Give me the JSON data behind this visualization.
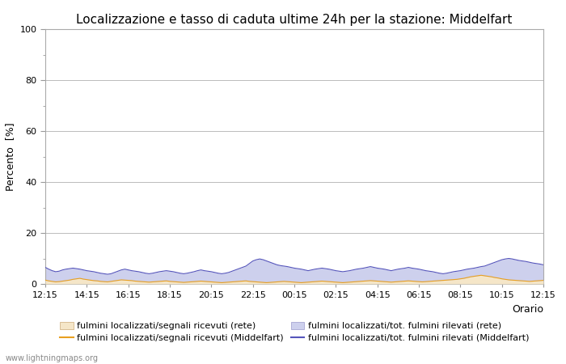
{
  "title": "Localizzazione e tasso di caduta ultime 24h per la stazione: Middelfart",
  "ylabel": "Percento  [%]",
  "xlabel": "Orario",
  "watermark": "www.lightningmaps.org",
  "ylim": [
    0,
    100
  ],
  "yticks": [
    0,
    20,
    40,
    60,
    80,
    100
  ],
  "yticks_minor": [
    10,
    30,
    50,
    70,
    90
  ],
  "x_labels": [
    "12:15",
    "14:15",
    "16:15",
    "18:15",
    "20:15",
    "22:15",
    "00:15",
    "02:15",
    "04:15",
    "06:15",
    "08:15",
    "10:15",
    "12:15"
  ],
  "fill_rete_color": "#f5e6c8",
  "fill_middelfart_color": "#cdd0ed",
  "line_rete_color": "#e8a020",
  "line_middelfart_color": "#5555bb",
  "bg_color": "#ffffff",
  "plot_bg_color": "#ffffff",
  "grid_color": "#bbbbbb",
  "title_fontsize": 11,
  "axis_fontsize": 9,
  "tick_fontsize": 8,
  "legend_fontsize": 8,
  "num_points": 145,
  "rete_fill_values": [
    1.5,
    1.2,
    1.0,
    0.8,
    0.9,
    1.1,
    1.3,
    1.5,
    1.8,
    2.0,
    2.2,
    1.9,
    1.7,
    1.5,
    1.3,
    1.2,
    1.0,
    0.9,
    0.8,
    1.0,
    1.2,
    1.4,
    1.6,
    1.5,
    1.4,
    1.3,
    1.1,
    1.0,
    0.9,
    0.8,
    0.7,
    0.8,
    0.9,
    1.0,
    1.1,
    1.2,
    1.0,
    0.9,
    0.8,
    0.7,
    0.6,
    0.7,
    0.8,
    0.9,
    1.0,
    1.1,
    1.0,
    0.9,
    0.8,
    0.7,
    0.6,
    0.5,
    0.6,
    0.7,
    0.8,
    0.9,
    1.0,
    1.1,
    1.2,
    1.0,
    0.9,
    0.8,
    0.7,
    0.6,
    0.5,
    0.6,
    0.7,
    0.8,
    0.9,
    1.0,
    0.9,
    0.8,
    0.7,
    0.6,
    0.5,
    0.6,
    0.7,
    0.8,
    0.9,
    1.0,
    1.1,
    1.0,
    0.9,
    0.8,
    0.7,
    0.6,
    0.5,
    0.6,
    0.7,
    0.8,
    0.9,
    1.0,
    1.1,
    1.2,
    1.3,
    1.2,
    1.1,
    1.0,
    0.9,
    0.8,
    0.7,
    0.8,
    0.9,
    1.0,
    1.1,
    1.2,
    1.1,
    1.0,
    0.9,
    0.8,
    0.9,
    1.0,
    1.1,
    1.2,
    1.3,
    1.4,
    1.5,
    1.6,
    1.7,
    1.8,
    2.0,
    2.2,
    2.5,
    2.8,
    3.0,
    3.2,
    3.4,
    3.2,
    3.0,
    2.8,
    2.5,
    2.3,
    2.0,
    1.8,
    1.6,
    1.5,
    1.4,
    1.3,
    1.2,
    1.1,
    1.0,
    1.1,
    1.2,
    1.3,
    1.4
  ],
  "middelfart_fill_values": [
    6.5,
    5.8,
    5.2,
    4.8,
    5.0,
    5.5,
    5.8,
    6.0,
    6.2,
    6.0,
    5.8,
    5.5,
    5.2,
    5.0,
    4.8,
    4.5,
    4.2,
    4.0,
    3.8,
    4.0,
    4.5,
    5.0,
    5.5,
    5.8,
    5.5,
    5.2,
    5.0,
    4.8,
    4.5,
    4.2,
    4.0,
    4.2,
    4.5,
    4.8,
    5.0,
    5.2,
    5.0,
    4.8,
    4.5,
    4.2,
    4.0,
    4.2,
    4.5,
    4.8,
    5.2,
    5.5,
    5.2,
    5.0,
    4.8,
    4.5,
    4.2,
    4.0,
    4.2,
    4.5,
    5.0,
    5.5,
    6.0,
    6.5,
    7.0,
    8.0,
    9.0,
    9.5,
    9.8,
    9.5,
    9.0,
    8.5,
    8.0,
    7.5,
    7.2,
    7.0,
    6.8,
    6.5,
    6.2,
    6.0,
    5.8,
    5.5,
    5.2,
    5.5,
    5.8,
    6.0,
    6.2,
    6.0,
    5.8,
    5.5,
    5.2,
    5.0,
    4.8,
    5.0,
    5.2,
    5.5,
    5.8,
    6.0,
    6.2,
    6.5,
    6.8,
    6.5,
    6.2,
    6.0,
    5.8,
    5.5,
    5.2,
    5.5,
    5.8,
    6.0,
    6.2,
    6.5,
    6.2,
    6.0,
    5.8,
    5.5,
    5.2,
    5.0,
    4.8,
    4.5,
    4.2,
    4.0,
    4.2,
    4.5,
    4.8,
    5.0,
    5.2,
    5.5,
    5.8,
    6.0,
    6.2,
    6.5,
    6.8,
    7.0,
    7.5,
    8.0,
    8.5,
    9.0,
    9.5,
    9.8,
    10.0,
    9.8,
    9.5,
    9.2,
    9.0,
    8.8,
    8.5,
    8.2,
    8.0,
    7.8,
    7.5
  ]
}
